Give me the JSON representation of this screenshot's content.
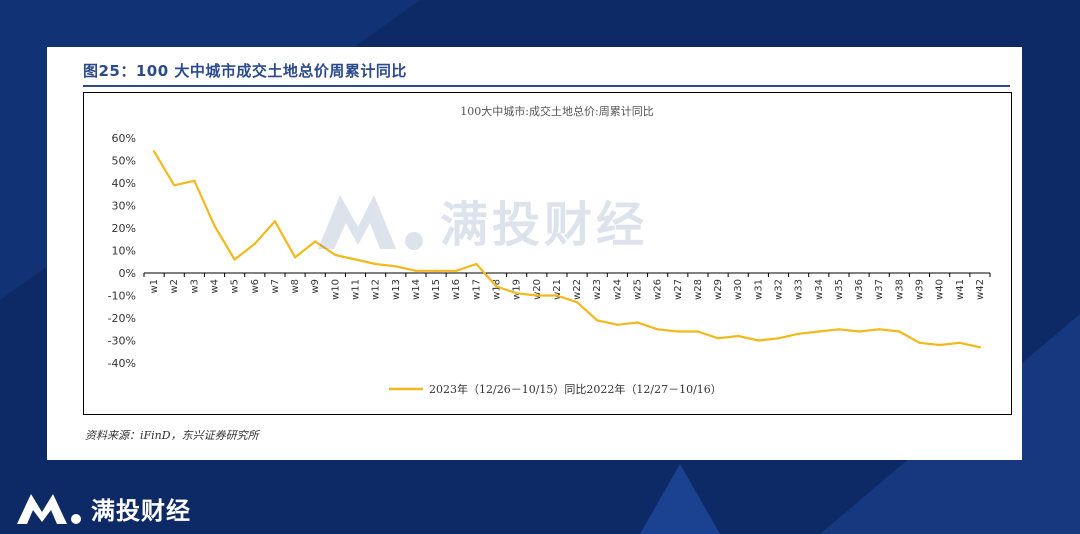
{
  "figure": {
    "title": "图25：100 大中城市成交土地总价周累计同比",
    "source": "资料来源：iFinD，东兴证券研究所"
  },
  "brand": {
    "name": "满投财经",
    "watermark": "满投财经",
    "logo_icon": "m-logo-icon",
    "colors": {
      "background": "#0e2a66",
      "logo": "#ffffff"
    }
  },
  "chart_data": {
    "type": "line",
    "title": "100大中城市:成交土地总价:周累计同比",
    "categories": [
      "w1",
      "w2",
      "w3",
      "w4",
      "w5",
      "w6",
      "w7",
      "w8",
      "w9",
      "w10",
      "w11",
      "w12",
      "w13",
      "w14",
      "w15",
      "w16",
      "w17",
      "w18",
      "w19",
      "w20",
      "w21",
      "w22",
      "w23",
      "w24",
      "w25",
      "w26",
      "w27",
      "w28",
      "w29",
      "w30",
      "w31",
      "w32",
      "w33",
      "w34",
      "w35",
      "w36",
      "w37",
      "w38",
      "w39",
      "w40",
      "w41",
      "w42"
    ],
    "series": [
      {
        "name": "2023年（12/26－10/15）同比2022年（12/27－10/16）",
        "color": "#f4b81c",
        "values": [
          54,
          39,
          41,
          21,
          6,
          13,
          23,
          7,
          14,
          8,
          6,
          4,
          3,
          1,
          1,
          1,
          4,
          -6,
          -9,
          -10,
          -10,
          -13,
          -21,
          -23,
          -22,
          -25,
          -26,
          -26,
          -29,
          -28,
          -30,
          -29,
          -27,
          -26,
          -25,
          -26,
          -25,
          -26,
          -31,
          -32,
          -31,
          -33
        ]
      }
    ],
    "ylim": [
      -40,
      60
    ],
    "yticks": [
      60,
      50,
      40,
      30,
      20,
      10,
      0,
      -10,
      -20,
      -30,
      -40
    ],
    "ytick_labels": [
      "60%",
      "50%",
      "40%",
      "30%",
      "20%",
      "10%",
      "0%",
      "-10%",
      "-20%",
      "-30%",
      "-40%"
    ],
    "grid": false,
    "legend_position": "bottom-center"
  }
}
